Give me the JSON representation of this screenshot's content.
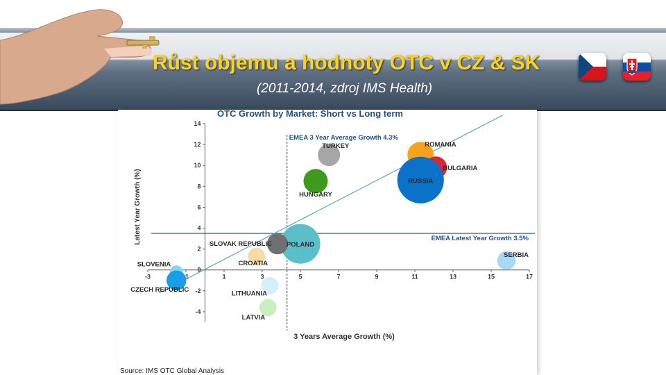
{
  "slide": {
    "title": "Růst objemu a hodnoty OTC v CZ & SK",
    "subtitle": "(2011-2014, zdroj IMS Health)",
    "icons": [
      "hand-with-key-icon",
      "czech-flag-icon",
      "slovak-flag-icon"
    ]
  },
  "chart_data": {
    "type": "scatter",
    "title": "OTC Growth by Market: Short vs Long term",
    "xlabel": "3 Years Average Growth (%)",
    "ylabel": "Latest Year Growth (%)",
    "xlim": [
      -3,
      17
    ],
    "ylim": [
      -5,
      14
    ],
    "xticks": [
      -3,
      -1,
      1,
      3,
      5,
      7,
      9,
      11,
      13,
      15,
      17
    ],
    "yticks": [
      -4,
      -2,
      0,
      2,
      4,
      6,
      8,
      10,
      12,
      14
    ],
    "source": "Source: IMS OTC Global Analysis",
    "reference_lines": [
      {
        "orientation": "vertical",
        "value": 4.3,
        "label": "EMEA 3 Year Average Growth 4.3%"
      },
      {
        "orientation": "horizontal",
        "value": 3.5,
        "label": "EMEA Latest Year Growth 3.5%"
      }
    ],
    "trend_line": {
      "from": [
        -2.4,
        -2.2
      ],
      "to": [
        15.6,
        14.8
      ]
    },
    "points": [
      {
        "label": "TURKEY",
        "x": 6.5,
        "y": 11.0,
        "size": 1.0,
        "color": "#a6a6a6"
      },
      {
        "label": "ROMANIA",
        "x": 11.3,
        "y": 11.0,
        "size": 1.4,
        "color": "#f7a21b"
      },
      {
        "label": "BULGARIA",
        "x": 12.1,
        "y": 9.8,
        "size": 1.0,
        "color": "#e2232a"
      },
      {
        "label": "RUSSIA",
        "x": 11.3,
        "y": 8.6,
        "size": 4.4,
        "color": "#0a72c8"
      },
      {
        "label": "HUNGARY",
        "x": 5.8,
        "y": 8.5,
        "size": 1.2,
        "color": "#3d9a1c"
      },
      {
        "label": "POLAND",
        "x": 5.0,
        "y": 2.5,
        "size": 3.2,
        "color": "#5bbfc9"
      },
      {
        "label": "SLOVAK REPUBLIC",
        "x": 3.8,
        "y": 2.5,
        "size": 0.9,
        "color": "#707070"
      },
      {
        "label": "CROATIA",
        "x": 2.7,
        "y": 1.3,
        "size": 0.6,
        "color": "#f9dba6"
      },
      {
        "label": "SERBIA",
        "x": 15.8,
        "y": 0.9,
        "size": 0.7,
        "color": "#a9d8f4"
      },
      {
        "label": "SLOVENIA",
        "x": -1.5,
        "y": -0.2,
        "size": 0.35,
        "color": "#7fd7f2"
      },
      {
        "label": "CZECH REPUBLIC",
        "x": -1.5,
        "y": -1.0,
        "size": 0.8,
        "color": "#1a9ee8"
      },
      {
        "label": "LITHUANIA",
        "x": 3.4,
        "y": -1.5,
        "size": 0.6,
        "color": "#d5eef9"
      },
      {
        "label": "LATVIA",
        "x": 3.3,
        "y": -3.6,
        "size": 0.6,
        "color": "#cbeec0"
      }
    ]
  }
}
